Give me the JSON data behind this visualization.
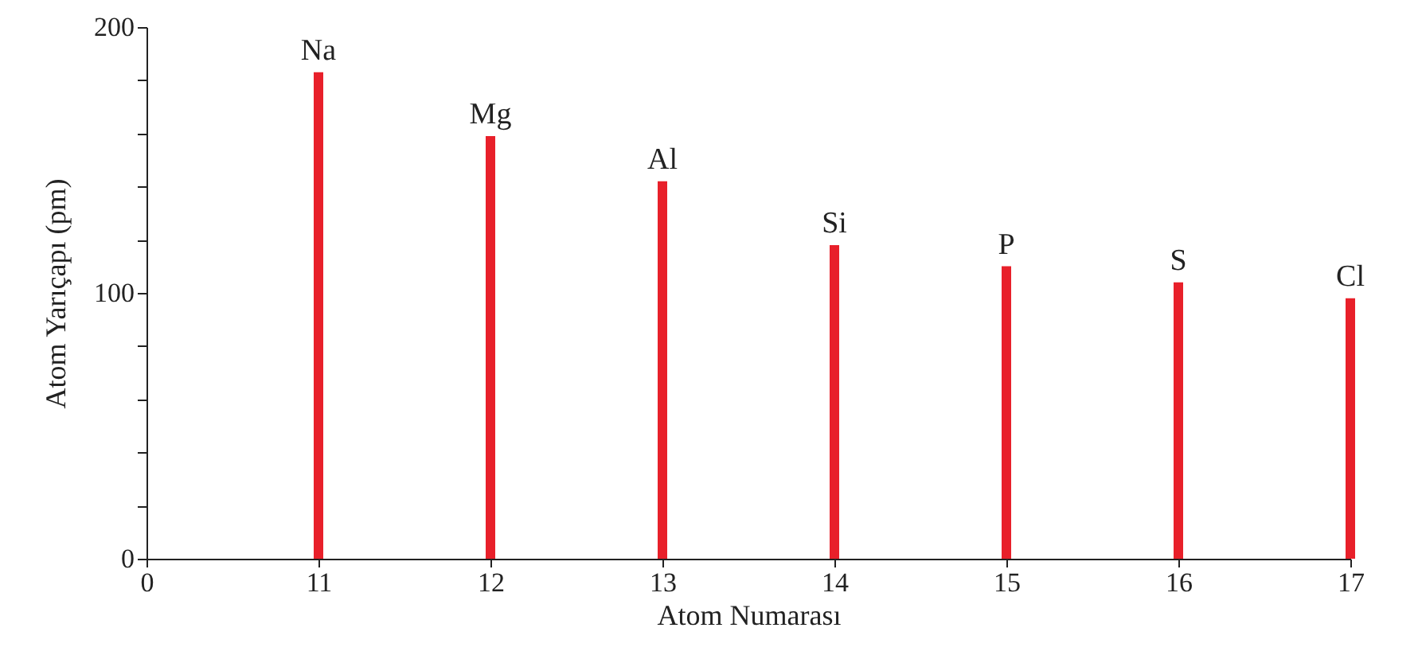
{
  "chart_data": {
    "type": "bar",
    "categories": [
      "0",
      "11",
      "12",
      "13",
      "14",
      "15",
      "16",
      "17"
    ],
    "values": [
      null,
      183,
      159,
      142,
      118,
      110,
      104,
      98
    ],
    "color": "#e8202a",
    "xlabel": "Atom Numarası",
    "ylabel": "Atom Yarıçapı (pm)",
    "ylim": [
      0,
      200
    ],
    "yticks": [
      0,
      {
        "value": 20,
        "label": null
      },
      {
        "value": 40,
        "label": null
      },
      {
        "value": 60,
        "label": null
      },
      {
        "value": 80,
        "label": null
      },
      100,
      {
        "value": 120,
        "label": null
      },
      {
        "value": 140,
        "label": null
      },
      {
        "value": 160,
        "label": null
      },
      {
        "value": 180,
        "label": null
      },
      200
    ],
    "annotations": [
      {
        "text": "Na",
        "x": "11",
        "y": 183
      },
      {
        "text": "Mg",
        "x": "12",
        "y": 159
      },
      {
        "text": "Al",
        "x": "13",
        "y": 142
      },
      {
        "text": "Si",
        "x": "14",
        "y": 118
      },
      {
        "text": "P",
        "x": "15",
        "y": 110
      },
      {
        "text": "S",
        "x": "16",
        "y": 104
      },
      {
        "text": "Cl",
        "x": "17",
        "y": 98
      }
    ],
    "grid": false
  }
}
